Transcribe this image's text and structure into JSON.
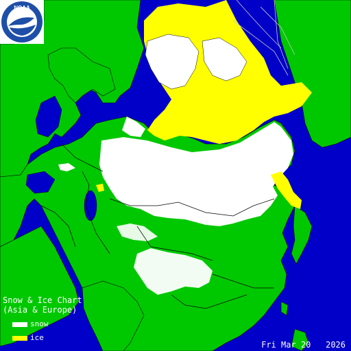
{
  "logo": {
    "text": "NOAA",
    "colors": {
      "ring": "#1e4fa8",
      "bird": "#ffffff",
      "background": "#ffffff"
    }
  },
  "legend": {
    "title_line1": "Snow & Ice Chart",
    "title_line2": "(Asia & Europe)",
    "items": [
      {
        "label": "snow",
        "color": "#ffffff"
      },
      {
        "label": "ice",
        "color": "#ffff00"
      }
    ]
  },
  "date": {
    "weekday": "Fri",
    "month": "Mar",
    "day": "20",
    "year": "2026"
  },
  "colors": {
    "water": "#0000c8",
    "land": "#00c800",
    "snow": "#ffffff",
    "ice": "#ffff00",
    "borders": "#000000",
    "grid": "#c8c8c8"
  }
}
